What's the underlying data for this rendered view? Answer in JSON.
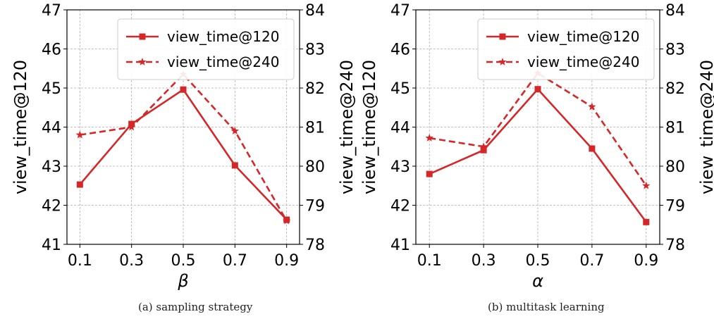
{
  "chart_data": [
    {
      "type": "line",
      "caption": "(a)  sampling strategy",
      "xlabel": "β",
      "ylabel_left": "view_time@120",
      "ylabel_right": "view_time@240",
      "x": [
        0.1,
        0.3,
        0.5,
        0.7,
        0.9
      ],
      "x_tick_labels": [
        "0.1",
        "0.3",
        "0.5",
        "0.7",
        "0.9"
      ],
      "ylim_left": [
        41,
        47
      ],
      "yticks_left": [
        41,
        42,
        43,
        44,
        45,
        46,
        47
      ],
      "ylim_right": [
        78,
        84
      ],
      "yticks_right": [
        78,
        79,
        80,
        81,
        82,
        83,
        84
      ],
      "grid": true,
      "legend": "top-right",
      "color": "#d62728",
      "series": [
        {
          "name": "view_time@120",
          "axis": "left",
          "style": "solid",
          "marker": "square",
          "values": [
            42.53,
            44.08,
            44.96,
            43.02,
            41.63
          ]
        },
        {
          "name": "view_time@240",
          "axis": "right",
          "style": "dashed",
          "marker": "star",
          "values": [
            80.8,
            81.0,
            82.35,
            80.9,
            78.6
          ]
        }
      ]
    },
    {
      "type": "line",
      "caption": "(b)  multitask learning",
      "xlabel": "α",
      "ylabel_left": "view_time@120",
      "ylabel_right": "view_time@240",
      "x": [
        0.1,
        0.3,
        0.5,
        0.7,
        0.9
      ],
      "x_tick_labels": [
        "0.1",
        "0.3",
        "0.5",
        "0.7",
        "0.9"
      ],
      "ylim_left": [
        41,
        47
      ],
      "yticks_left": [
        41,
        42,
        43,
        44,
        45,
        46,
        47
      ],
      "ylim_right": [
        78,
        84
      ],
      "yticks_right": [
        78,
        79,
        80,
        81,
        82,
        83,
        84
      ],
      "grid": true,
      "legend": "top-right",
      "color": "#d62728",
      "series": [
        {
          "name": "view_time@120",
          "axis": "left",
          "style": "solid",
          "marker": "square",
          "values": [
            42.8,
            43.41,
            44.97,
            43.45,
            41.57
          ]
        },
        {
          "name": "view_time@240",
          "axis": "right",
          "style": "dashed",
          "marker": "star",
          "values": [
            80.72,
            80.5,
            82.38,
            81.52,
            79.5
          ]
        }
      ]
    }
  ]
}
